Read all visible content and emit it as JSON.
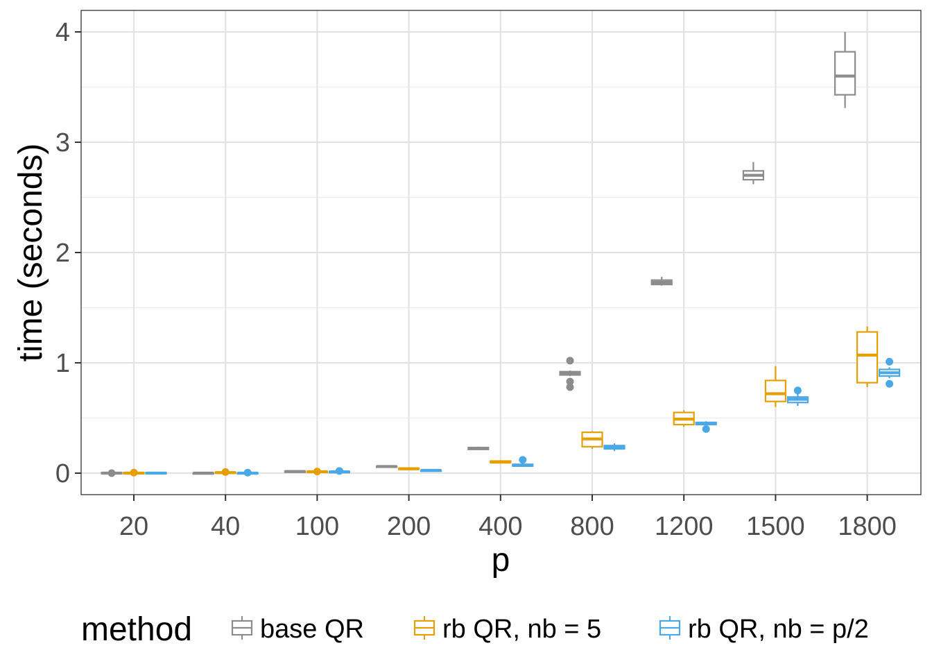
{
  "chart_data": {
    "type": "box",
    "xlabel": "p",
    "ylabel": "time (seconds)",
    "categories": [
      "20",
      "40",
      "100",
      "200",
      "400",
      "800",
      "1200",
      "1500",
      "1800"
    ],
    "y_ticks": [
      0,
      1,
      2,
      3,
      4
    ],
    "ylim": [
      -0.19,
      4.2
    ],
    "grid": true,
    "legend_title": "method",
    "legend_position": "bottom",
    "series": [
      {
        "name": "base QR",
        "color": "#8c8c8c",
        "boxes": [
          {
            "min": -0.01,
            "q1": -0.005,
            "median": 0.0,
            "q3": 0.005,
            "max": 0.01,
            "outliers": [
              0.0
            ]
          },
          {
            "min": -0.005,
            "q1": -0.002,
            "median": 0.0,
            "q3": 0.002,
            "max": 0.005,
            "outliers": []
          },
          {
            "min": 0.01,
            "q1": 0.013,
            "median": 0.015,
            "q3": 0.018,
            "max": 0.02,
            "outliers": []
          },
          {
            "min": 0.055,
            "q1": 0.058,
            "median": 0.06,
            "q3": 0.063,
            "max": 0.065,
            "outliers": []
          },
          {
            "min": 0.21,
            "q1": 0.215,
            "median": 0.225,
            "q3": 0.232,
            "max": 0.24,
            "outliers": []
          },
          {
            "min": 0.88,
            "q1": 0.89,
            "median": 0.905,
            "q3": 0.92,
            "max": 0.93,
            "outliers": [
              1.02,
              0.83,
              0.78
            ]
          },
          {
            "min": 1.7,
            "q1": 1.71,
            "median": 1.73,
            "q3": 1.75,
            "max": 1.78,
            "outliers": []
          },
          {
            "min": 2.62,
            "q1": 2.66,
            "median": 2.7,
            "q3": 2.74,
            "max": 2.82,
            "outliers": []
          },
          {
            "min": 3.31,
            "q1": 3.43,
            "median": 3.6,
            "q3": 3.82,
            "max": 4.0,
            "outliers": []
          }
        ]
      },
      {
        "name": "rb QR, nb = 5",
        "color": "#e69f00",
        "boxes": [
          {
            "min": -0.01,
            "q1": -0.005,
            "median": 0.0,
            "q3": 0.005,
            "max": 0.01,
            "outliers": [
              0.005
            ]
          },
          {
            "min": 0.0,
            "q1": 0.003,
            "median": 0.005,
            "q3": 0.008,
            "max": 0.01,
            "outliers": [
              0.01
            ]
          },
          {
            "min": 0.005,
            "q1": 0.01,
            "median": 0.013,
            "q3": 0.016,
            "max": 0.02,
            "outliers": [
              0.015
            ]
          },
          {
            "min": 0.03,
            "q1": 0.035,
            "median": 0.04,
            "q3": 0.043,
            "max": 0.046,
            "outliers": []
          },
          {
            "min": 0.09,
            "q1": 0.095,
            "median": 0.1,
            "q3": 0.11,
            "max": 0.115,
            "outliers": []
          },
          {
            "min": 0.22,
            "q1": 0.24,
            "median": 0.31,
            "q3": 0.37,
            "max": 0.38,
            "outliers": []
          },
          {
            "min": 0.42,
            "q1": 0.44,
            "median": 0.49,
            "q3": 0.55,
            "max": 0.57,
            "outliers": []
          },
          {
            "min": 0.6,
            "q1": 0.65,
            "median": 0.72,
            "q3": 0.84,
            "max": 0.97,
            "outliers": []
          },
          {
            "min": 0.78,
            "q1": 0.82,
            "median": 1.07,
            "q3": 1.28,
            "max": 1.33,
            "outliers": []
          }
        ]
      },
      {
        "name": "rb QR, nb = p/2",
        "color": "#4aa8e6",
        "boxes": [
          {
            "min": -0.01,
            "q1": -0.005,
            "median": 0.0,
            "q3": 0.005,
            "max": 0.01,
            "outliers": []
          },
          {
            "min": -0.005,
            "q1": -0.002,
            "median": 0.0,
            "q3": 0.003,
            "max": 0.005,
            "outliers": [
              0.005
            ]
          },
          {
            "min": 0.008,
            "q1": 0.01,
            "median": 0.012,
            "q3": 0.014,
            "max": 0.016,
            "outliers": [
              0.02
            ]
          },
          {
            "min": 0.02,
            "q1": 0.023,
            "median": 0.025,
            "q3": 0.027,
            "max": 0.03,
            "outliers": []
          },
          {
            "min": 0.06,
            "q1": 0.065,
            "median": 0.07,
            "q3": 0.08,
            "max": 0.09,
            "outliers": [
              0.12
            ]
          },
          {
            "min": 0.2,
            "q1": 0.22,
            "median": 0.235,
            "q3": 0.25,
            "max": 0.27,
            "outliers": []
          },
          {
            "min": 0.43,
            "q1": 0.44,
            "median": 0.45,
            "q3": 0.46,
            "max": 0.47,
            "outliers": [
              0.4
            ]
          },
          {
            "min": 0.61,
            "q1": 0.64,
            "median": 0.67,
            "q3": 0.69,
            "max": 0.72,
            "outliers": [
              0.75
            ]
          },
          {
            "min": 0.86,
            "q1": 0.88,
            "median": 0.91,
            "q3": 0.94,
            "max": 0.96,
            "outliers": [
              1.01,
              0.81
            ]
          }
        ]
      }
    ]
  }
}
